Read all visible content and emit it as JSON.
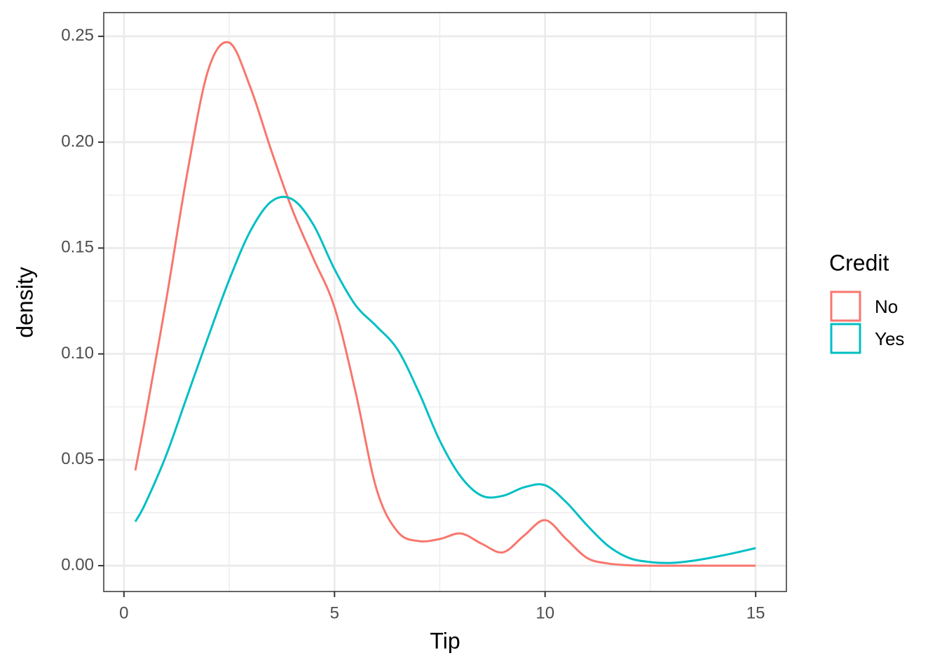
{
  "chart_data": {
    "type": "line",
    "x_label": "Tip",
    "y_label": "density",
    "legend_title": "Credit",
    "legend_position": "right",
    "x": [
      0.27,
      0.5,
      1,
      1.5,
      2,
      2.5,
      3,
      3.5,
      4,
      4.5,
      5,
      5.5,
      6,
      6.5,
      7,
      7.5,
      8,
      8.5,
      9,
      9.5,
      10,
      10.5,
      11,
      11.5,
      12,
      12.5,
      13,
      13.5,
      14,
      14.5,
      15
    ],
    "series": [
      {
        "name": "No",
        "color": "#f8766d",
        "values": [
          0.045,
          0.069,
          0.125,
          0.185,
          0.234,
          0.247,
          0.226,
          0.196,
          0.168,
          0.145,
          0.122,
          0.082,
          0.036,
          0.016,
          0.0116,
          0.0126,
          0.0152,
          0.0103,
          0.0063,
          0.0142,
          0.0215,
          0.0126,
          0.0036,
          0.001,
          0.0002,
          0,
          0,
          0,
          0,
          0,
          0
        ]
      },
      {
        "name": "Yes",
        "color": "#00bfc4",
        "values": [
          0.0208,
          0.029,
          0.052,
          0.08,
          0.108,
          0.135,
          0.158,
          0.172,
          0.173,
          0.161,
          0.14,
          0.123,
          0.113,
          0.102,
          0.082,
          0.059,
          0.042,
          0.033,
          0.033,
          0.037,
          0.038,
          0.03,
          0.019,
          0.0093,
          0.0036,
          0.0017,
          0.0013,
          0.0023,
          0.004,
          0.006,
          0.0083
        ]
      }
    ],
    "xlim": [
      -0.48,
      15.73
    ],
    "ylim": [
      -0.0122,
      0.2612
    ],
    "xticks": [
      0,
      5,
      10,
      15
    ],
    "yticks": [
      {
        "value": 0,
        "label": "0.00"
      },
      {
        "value": 0.05,
        "label": "0.05"
      },
      {
        "value": 0.1,
        "label": "0.10"
      },
      {
        "value": 0.15,
        "label": "0.15"
      },
      {
        "value": 0.2,
        "label": "0.20"
      },
      {
        "value": 0.25,
        "label": "0.25"
      }
    ],
    "x_minor_grid": [
      2.5,
      7.5,
      12.5
    ],
    "y_minor_grid": [
      0.025,
      0.075,
      0.125,
      0.175,
      0.225
    ],
    "grid": true
  }
}
